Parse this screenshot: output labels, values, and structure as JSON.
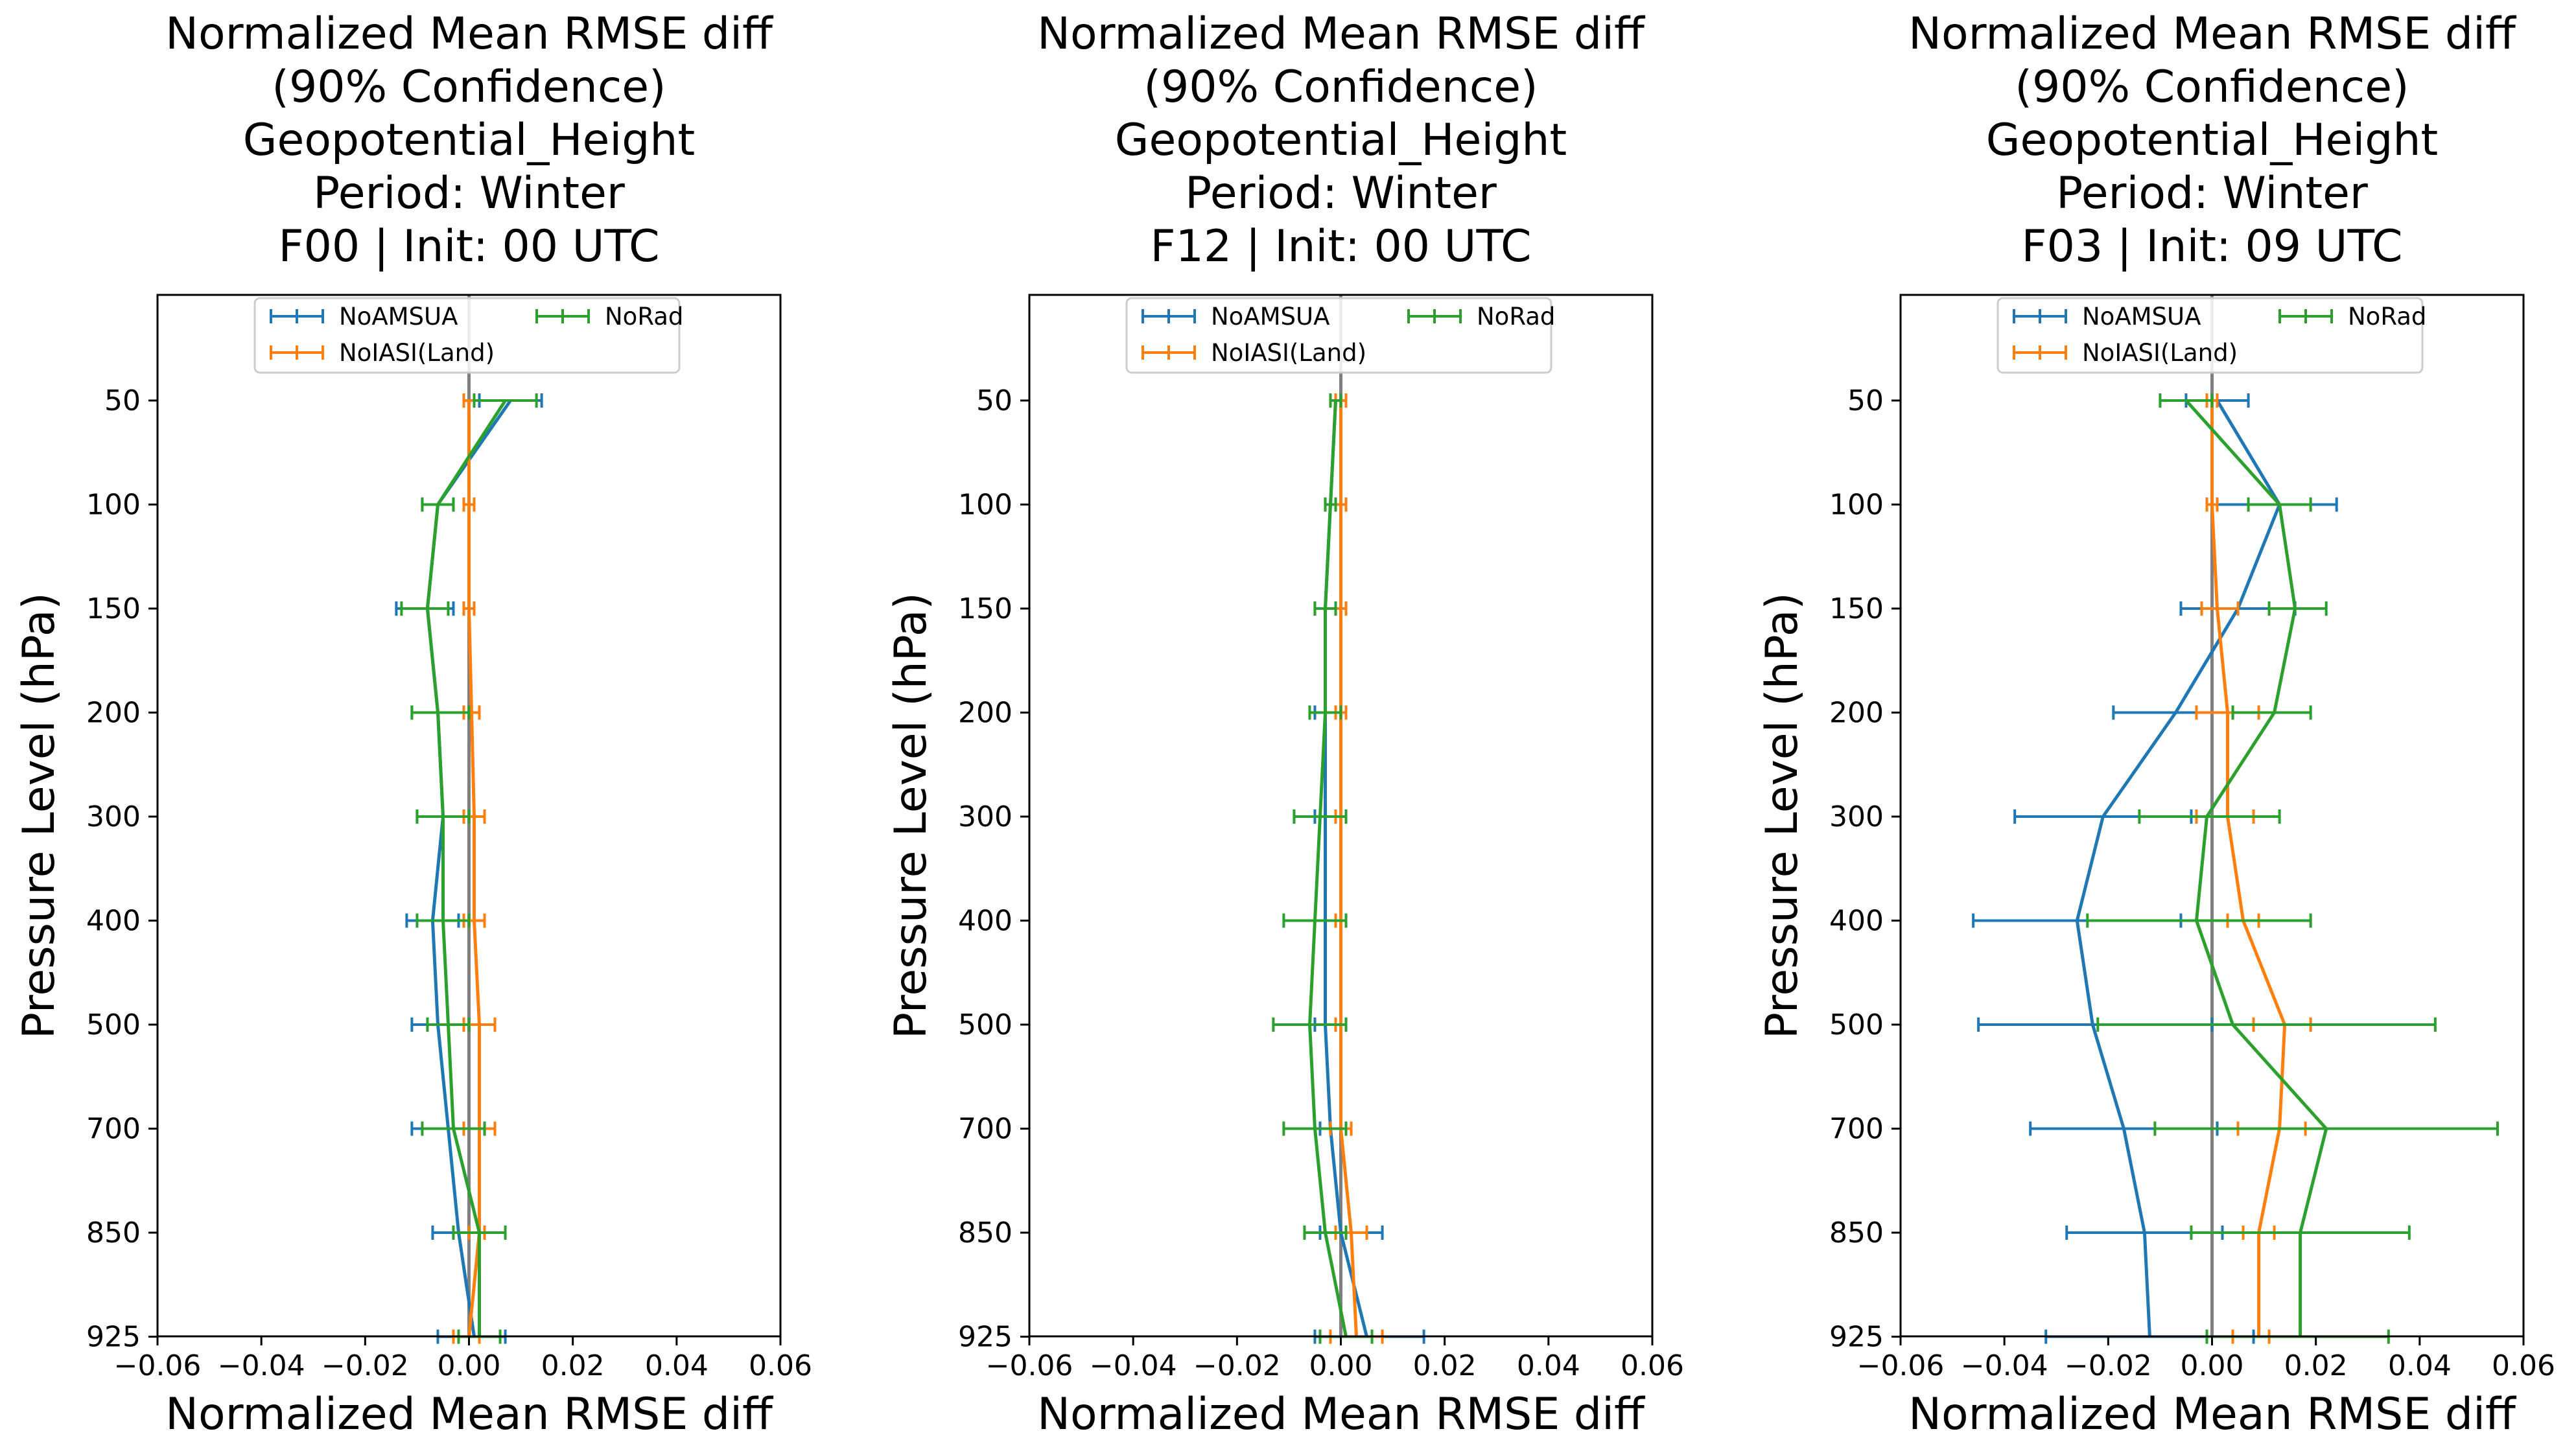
{
  "colors": {
    "NoAMSUA": "#1f77b4",
    "NoIASI(Land)": "#ff7f0e",
    "NoRad": "#2ca02c",
    "zero_line": "#808080"
  },
  "chart_data": [
    {
      "type": "line",
      "orientation": "horizontal-profile",
      "title_lines": [
        "Normalized Mean RMSE diff",
        "(90% Confidence)",
        "Geopotential_Height",
        "Period: Winter",
        "F00 | Init: 00 UTC"
      ],
      "xlabel": "Normalized Mean RMSE diff",
      "ylabel": "Pressure Level (hPa)",
      "xlim": [
        -0.06,
        0.06
      ],
      "xticks": [
        "−0.06",
        "−0.04",
        "−0.02",
        "0.00",
        "0.02",
        "0.04",
        "0.06"
      ],
      "levels": [
        50,
        100,
        150,
        200,
        300,
        400,
        500,
        700,
        850,
        925
      ],
      "series": [
        {
          "name": "NoAMSUA",
          "mean": [
            0.008,
            -0.006,
            -0.008,
            -0.006,
            -0.005,
            -0.007,
            -0.006,
            -0.004,
            -0.002,
            0.001
          ],
          "lower": [
            0.002,
            -0.009,
            -0.014,
            -0.011,
            -0.01,
            -0.012,
            -0.011,
            -0.011,
            -0.007,
            -0.006
          ],
          "upper": [
            0.014,
            -0.003,
            -0.003,
            -0.001,
            0.0,
            -0.002,
            -0.001,
            0.003,
            0.003,
            0.007
          ]
        },
        {
          "name": "NoIASI(Land)",
          "mean": [
            0.0,
            0.0,
            0.0,
            0.0005,
            0.001,
            0.001,
            0.002,
            0.002,
            0.002,
            0.0
          ],
          "lower": [
            -0.001,
            -0.001,
            -0.001,
            -0.001,
            -0.001,
            -0.001,
            -0.001,
            -0.001,
            0.0,
            -0.003
          ],
          "upper": [
            0.001,
            0.001,
            0.001,
            0.002,
            0.003,
            0.003,
            0.005,
            0.005,
            0.003,
            0.002
          ]
        },
        {
          "name": "NoRad",
          "mean": [
            0.007,
            -0.006,
            -0.008,
            -0.006,
            -0.005,
            -0.005,
            -0.004,
            -0.003,
            0.002,
            0.002
          ],
          "lower": [
            0.001,
            -0.009,
            -0.013,
            -0.011,
            -0.01,
            -0.01,
            -0.008,
            -0.009,
            -0.003,
            -0.002
          ],
          "upper": [
            0.013,
            -0.003,
            -0.004,
            0.0,
            0.0,
            0.0,
            0.0,
            0.003,
            0.007,
            0.006
          ]
        }
      ]
    },
    {
      "type": "line",
      "orientation": "horizontal-profile",
      "title_lines": [
        "Normalized Mean RMSE diff",
        "(90% Confidence)",
        "Geopotential_Height",
        "Period: Winter",
        "F12 | Init: 00 UTC"
      ],
      "xlabel": "Normalized Mean RMSE diff",
      "ylabel": "Pressure Level (hPa)",
      "xlim": [
        -0.06,
        0.06
      ],
      "xticks": [
        "−0.06",
        "−0.04",
        "−0.02",
        "0.00",
        "0.02",
        "0.04",
        "0.06"
      ],
      "levels": [
        50,
        100,
        150,
        200,
        300,
        400,
        500,
        700,
        850,
        925
      ],
      "series": [
        {
          "name": "NoAMSUA",
          "mean": [
            -0.001,
            -0.002,
            -0.003,
            -0.003,
            -0.003,
            -0.003,
            -0.003,
            -0.002,
            0.0,
            0.005
          ],
          "lower": [
            -0.002,
            -0.003,
            -0.005,
            -0.005,
            -0.005,
            -0.005,
            -0.005,
            -0.004,
            -0.004,
            -0.005
          ],
          "upper": [
            0.0,
            -0.001,
            -0.001,
            -0.001,
            -0.001,
            -0.001,
            -0.001,
            0.0,
            0.008,
            0.016
          ]
        },
        {
          "name": "NoIASI(Land)",
          "mean": [
            0.0,
            0.0,
            0.0,
            0.0,
            0.0,
            0.0,
            0.0,
            0.0,
            0.002,
            0.003
          ],
          "lower": [
            -0.001,
            -0.001,
            -0.001,
            -0.001,
            -0.001,
            -0.001,
            -0.001,
            -0.002,
            -0.001,
            -0.002
          ],
          "upper": [
            0.001,
            0.001,
            0.001,
            0.001,
            0.001,
            0.001,
            0.001,
            0.002,
            0.005,
            0.008
          ]
        },
        {
          "name": "NoRad",
          "mean": [
            -0.001,
            -0.002,
            -0.003,
            -0.003,
            -0.004,
            -0.005,
            -0.006,
            -0.005,
            -0.003,
            0.001
          ],
          "lower": [
            -0.002,
            -0.003,
            -0.005,
            -0.006,
            -0.009,
            -0.011,
            -0.013,
            -0.011,
            -0.007,
            -0.004
          ],
          "upper": [
            0.0,
            -0.001,
            -0.001,
            0.0,
            0.001,
            0.001,
            0.001,
            0.001,
            0.001,
            0.006
          ]
        }
      ]
    },
    {
      "type": "line",
      "orientation": "horizontal-profile",
      "title_lines": [
        "Normalized Mean RMSE diff",
        "(90% Confidence)",
        "Geopotential_Height",
        "Period: Winter",
        "F03 | Init: 09 UTC"
      ],
      "xlabel": "Normalized Mean RMSE diff",
      "ylabel": "Pressure Level (hPa)",
      "xlim": [
        -0.06,
        0.06
      ],
      "xticks": [
        "−0.06",
        "−0.04",
        "−0.02",
        "0.00",
        "0.02",
        "0.04",
        "0.06"
      ],
      "levels": [
        50,
        100,
        150,
        200,
        300,
        400,
        500,
        700,
        850,
        925
      ],
      "series": [
        {
          "name": "NoAMSUA",
          "mean": [
            0.001,
            0.013,
            0.005,
            -0.007,
            -0.021,
            -0.026,
            -0.023,
            -0.017,
            -0.013,
            -0.012
          ],
          "lower": [
            -0.005,
            0.001,
            -0.006,
            -0.019,
            -0.038,
            -0.046,
            -0.045,
            -0.035,
            -0.028,
            -0.032
          ],
          "upper": [
            0.007,
            0.024,
            0.016,
            0.004,
            -0.004,
            -0.006,
            0.0,
            0.001,
            0.002,
            0.008
          ]
        },
        {
          "name": "NoIASI(Land)",
          "mean": [
            0.0,
            0.0,
            0.001,
            0.003,
            0.003,
            0.006,
            0.014,
            0.013,
            0.009,
            0.009
          ],
          "lower": [
            -0.001,
            -0.001,
            -0.002,
            -0.003,
            -0.003,
            0.003,
            0.008,
            0.005,
            0.006,
            0.004
          ],
          "upper": [
            0.001,
            0.001,
            0.005,
            0.009,
            0.008,
            0.009,
            0.019,
            0.018,
            0.012,
            0.011
          ]
        },
        {
          "name": "NoRad",
          "mean": [
            -0.005,
            0.013,
            0.016,
            0.012,
            -0.001,
            -0.003,
            0.004,
            0.022,
            0.017,
            0.017
          ],
          "lower": [
            -0.01,
            0.007,
            0.011,
            0.004,
            -0.014,
            -0.024,
            -0.022,
            -0.011,
            -0.004,
            -0.001
          ],
          "upper": [
            0.0,
            0.019,
            0.022,
            0.019,
            0.013,
            0.019,
            0.043,
            0.055,
            0.038,
            0.034
          ]
        }
      ]
    }
  ]
}
